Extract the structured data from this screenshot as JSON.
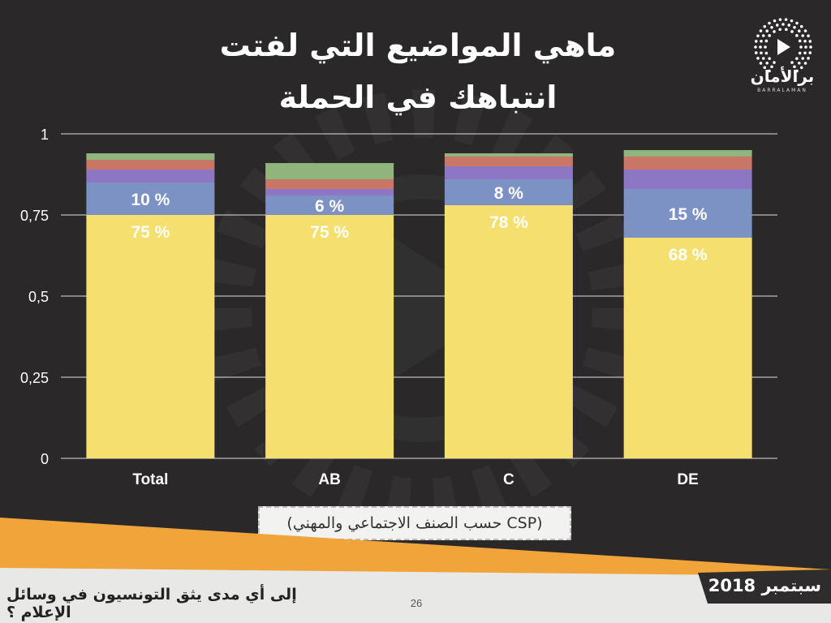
{
  "slide": {
    "title_line1": "ماهي المواضيع التي لفتت",
    "title_line2": "انتباهك في الحملة",
    "logo_name": "برالأمان",
    "logo_sub": "BARRALAMAN",
    "caption": "(CSP حسب الصنف الاجتماعي والمهني)",
    "footer_question": "إلى أي مدى يثق التونسيون في وسائل الإعلام ؟",
    "footer_date": "سبتمبر 2018",
    "page_number": "26"
  },
  "colors": {
    "background": "#2a2828",
    "yellow": "#f4df6f",
    "blue": "#7d92c4",
    "purple": "#8d76c4",
    "red": "#c97667",
    "green": "#8fb57d",
    "orange_band": "#f0a43a",
    "light_band": "#e8e8e6"
  },
  "chart_data": {
    "type": "bar",
    "stacked": true,
    "categories": [
      "Total",
      "AB",
      "C",
      "DE"
    ],
    "series": [
      {
        "values": [
          0.75,
          0.75,
          0.78,
          0.68
        ],
        "color": "#f4df6f",
        "labels": [
          "75 %",
          "75 %",
          "78 %",
          "68 %"
        ]
      },
      {
        "values": [
          0.1,
          0.06,
          0.08,
          0.15
        ],
        "color": "#7d92c4",
        "labels": [
          "10 %",
          "6 %",
          "8 %",
          "15 %"
        ]
      },
      {
        "values": [
          0.04,
          0.02,
          0.04,
          0.06
        ],
        "color": "#8d76c4"
      },
      {
        "values": [
          0.03,
          0.03,
          0.03,
          0.04
        ],
        "color": "#c97667"
      },
      {
        "values": [
          0.02,
          0.05,
          0.01,
          0.02
        ],
        "color": "#8fb57d"
      }
    ],
    "ylim": [
      0,
      1
    ],
    "yticks": [
      0,
      0.25,
      0.5,
      0.75,
      1
    ],
    "ytick_labels": [
      "0",
      "0,25",
      "0,5",
      "0,75",
      "1"
    ],
    "grid": true,
    "legend": "none"
  }
}
